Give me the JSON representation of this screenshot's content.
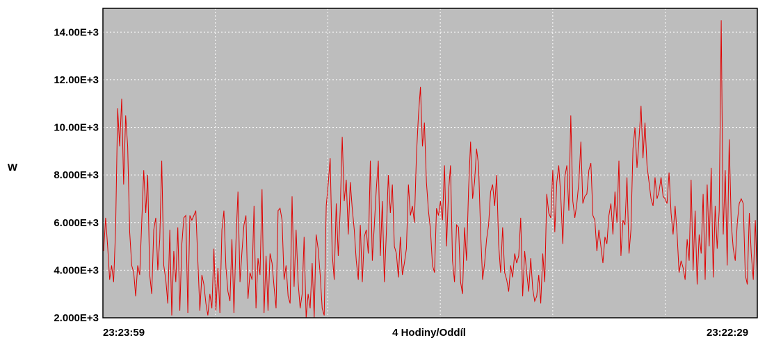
{
  "chart_data": {
    "type": "line",
    "title": "",
    "xlabel": "4 Hodiny/Oddíl",
    "ylabel": "W",
    "x_start_label": "23:23:59",
    "x_end_label": "23:22:29",
    "ylim": [
      2000,
      15000
    ],
    "yticks": [
      2000,
      4000,
      6000,
      8000,
      10000,
      12000,
      14000
    ],
    "ytick_labels": [
      "2.000E+3",
      "4.000E+3",
      "6.000E+3",
      "8.000E+3",
      "10.00E+3",
      "12.00E+3",
      "14.00E+3"
    ],
    "x_divisions": 6,
    "grid": true,
    "colors": {
      "plot_bg": "#bdbdbd",
      "line": "#e00000",
      "grid": "#ffffff",
      "frame": "#000000"
    },
    "series": [
      {
        "values": [
          4800,
          6200,
          5000,
          3600,
          4200,
          3500,
          5800,
          10800,
          9200,
          11200,
          7600,
          10500,
          9200,
          5600,
          4200,
          3900,
          2900,
          4200,
          3800,
          6000,
          8200,
          6400,
          8000,
          3800,
          3000,
          5700,
          6200,
          4000,
          5300,
          8600,
          4200,
          3600,
          2600,
          5700,
          2100,
          4800,
          3500,
          5800,
          2300,
          5100,
          6200,
          6300,
          2200,
          6300,
          6100,
          6300,
          6500,
          4400,
          2300,
          3800,
          3400,
          2600,
          2100,
          3000,
          2400,
          4900,
          2300,
          4100,
          2200,
          5700,
          6500,
          4100,
          3100,
          2700,
          5300,
          2200,
          5200,
          7300,
          3500,
          4800,
          5900,
          6300,
          2800,
          3900,
          3600,
          6700,
          2400,
          4500,
          3800,
          7400,
          2200,
          4600,
          2300,
          4700,
          4300,
          3300,
          2400,
          6500,
          6600,
          6100,
          3600,
          4200,
          2900,
          2600,
          7100,
          3300,
          5700,
          3500,
          2400,
          3000,
          5400,
          2000,
          3000,
          2400,
          4300,
          2000,
          5500,
          4900,
          3800,
          2400,
          2100,
          6700,
          7600,
          8700,
          4700,
          3600,
          6800,
          4600,
          6500,
          9600,
          6900,
          7800,
          5500,
          7700,
          6600,
          5700,
          4400,
          3600,
          5900,
          3500,
          5400,
          5700,
          4700,
          8600,
          4400,
          5900,
          7400,
          8600,
          4600,
          6900,
          3500,
          5600,
          8000,
          6400,
          7600,
          5000,
          4700,
          3700,
          5400,
          3800,
          4300,
          4900,
          7600,
          6300,
          6700,
          6000,
          8800,
          10500,
          11700,
          9200,
          10200,
          7700,
          6500,
          5700,
          4200,
          3900,
          6600,
          6300,
          6900,
          6100,
          8400,
          5000,
          7300,
          8400,
          4400,
          3500,
          5900,
          5800,
          3500,
          3000,
          5800,
          4400,
          7400,
          9400,
          7000,
          7700,
          9100,
          8400,
          5600,
          3600,
          4300,
          5300,
          5900,
          7300,
          7600,
          6700,
          8000,
          5100,
          3900,
          5800,
          3900,
          3600,
          3100,
          4200,
          3700,
          4700,
          4300,
          4600,
          6200,
          2900,
          4800,
          3900,
          3100,
          4500,
          3200,
          2700,
          2900,
          3800,
          2600,
          4700,
          3500,
          7200,
          6400,
          6200,
          8200,
          5600,
          7700,
          8400,
          7100,
          5100,
          7900,
          8400,
          6500,
          10500,
          6900,
          6200,
          6800,
          7700,
          9400,
          6800,
          7100,
          7200,
          8200,
          8500,
          6300,
          6100,
          4800,
          5700,
          5000,
          4300,
          5400,
          5100,
          6300,
          6800,
          5500,
          7300,
          6000,
          8600,
          4600,
          6100,
          5900,
          7900,
          4700,
          5700,
          9100,
          10000,
          8300,
          9500,
          10900,
          8700,
          10200,
          8400,
          7700,
          7000,
          6700,
          7900,
          7000,
          7300,
          7900,
          7100,
          7000,
          6800,
          8100,
          6400,
          5500,
          6700,
          5500,
          3900,
          4400,
          4100,
          3600,
          5300,
          4400,
          7800,
          4000,
          6500,
          3400,
          5500,
          4700,
          7200,
          3600,
          7600,
          5000,
          8300,
          3700,
          6700,
          4900,
          6500,
          14500,
          5500,
          8200,
          4200,
          9500,
          6000,
          4900,
          4400,
          6000,
          6800,
          7000,
          6800,
          3800,
          3400,
          6400,
          4700,
          3600,
          6100,
          3600
        ]
      }
    ]
  }
}
